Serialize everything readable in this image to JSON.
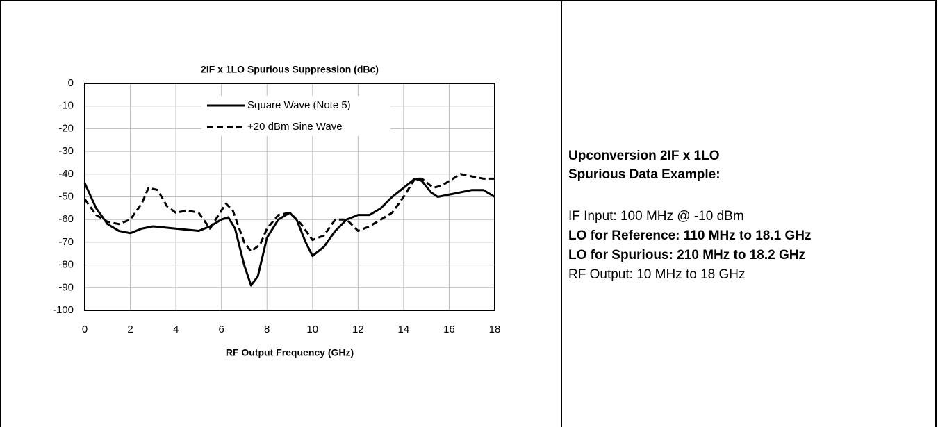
{
  "chart_data": {
    "type": "line",
    "title": "2IF x 1LO Spurious Suppression (dBc)",
    "x_label": "RF Output Frequency (GHz)",
    "xlim": [
      0,
      18
    ],
    "xticks": [
      0,
      2,
      4,
      6,
      8,
      10,
      12,
      14,
      16,
      18
    ],
    "ylim": [
      -100,
      0
    ],
    "yticks": [
      0,
      -10,
      -20,
      -30,
      -40,
      -50,
      -60,
      -70,
      -80,
      -90,
      -100
    ],
    "grid": true,
    "series": [
      {
        "name": "Square Wave (Note 5)",
        "color": "#000000",
        "dash": false,
        "x": [
          0,
          0.5,
          1,
          1.5,
          2,
          2.5,
          3,
          4,
          5,
          5.5,
          6,
          6.3,
          6.6,
          7,
          7.3,
          7.6,
          8,
          8.5,
          9,
          9.3,
          9.7,
          10,
          10.5,
          11,
          11.5,
          12,
          12.5,
          13,
          13.5,
          14,
          14.5,
          14.8,
          15.2,
          15.5,
          16,
          17,
          17.5,
          18
        ],
        "values": [
          -44,
          -55,
          -62,
          -65,
          -66,
          -64,
          -63,
          -64,
          -65,
          -63,
          -60,
          -59,
          -64,
          -80,
          -89,
          -85,
          -68,
          -60,
          -57,
          -60,
          -70,
          -76,
          -72,
          -65,
          -60,
          -58,
          -58,
          -55,
          -50,
          -46,
          -42,
          -43,
          -48,
          -50,
          -49,
          -47,
          -47,
          -50
        ]
      },
      {
        "name": "+20 dBm Sine Wave",
        "color": "#000000",
        "dash": true,
        "x": [
          0,
          0.5,
          1,
          1.5,
          2,
          2.5,
          2.8,
          3.2,
          3.6,
          4,
          4.5,
          5,
          5.5,
          6,
          6.2,
          6.5,
          7,
          7.3,
          7.7,
          8,
          8.5,
          9,
          9.5,
          10,
          10.5,
          11,
          11.5,
          12,
          12.5,
          13,
          13.5,
          14,
          14.5,
          14.8,
          15.3,
          15.7,
          16,
          16.5,
          17,
          17.5,
          18
        ],
        "values": [
          -51,
          -58,
          -61,
          -62,
          -60,
          -53,
          -46,
          -47,
          -54,
          -57,
          -56,
          -57,
          -64,
          -56,
          -53,
          -56,
          -70,
          -74,
          -71,
          -64,
          -58,
          -57,
          -62,
          -69,
          -67,
          -60,
          -60,
          -65,
          -63,
          -60,
          -57,
          -50,
          -42,
          -42,
          -46,
          -45,
          -43,
          -40,
          -41,
          -42,
          -42
        ]
      }
    ]
  },
  "info": {
    "heading": [
      "Upconversion 2IF x 1LO",
      "Spurious Data Example:"
    ],
    "lines": [
      {
        "text": "IF Input: 100 MHz @ -10 dBm",
        "bold": false
      },
      {
        "text": "LO for Reference: 110 MHz to 18.1 GHz",
        "bold": true
      },
      {
        "text": "LO for Spurious: 210 MHz to 18.2 GHz",
        "bold": true
      },
      {
        "text": "RF Output: 10 MHz to 18 GHz",
        "bold": false
      }
    ]
  }
}
